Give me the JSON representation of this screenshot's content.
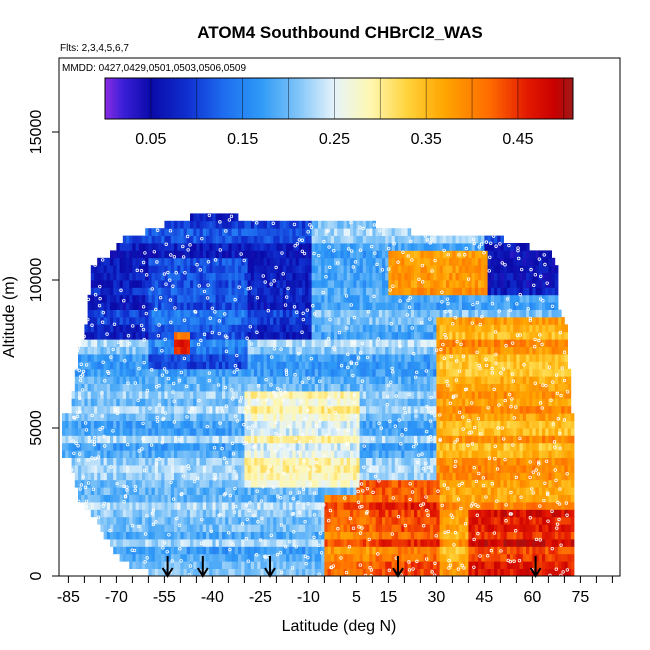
{
  "chart_data": {
    "type": "heatmap",
    "title": "ATOM4 Southbound CHBrCl2_WAS",
    "subtitle_flights": "Flts: 2,3,4,5,6,7",
    "subtitle_dates": "MMDD: 0427,0429,0501,0503,0506,0509",
    "xlabel": "Latitude (deg N)",
    "ylabel": "Altitude (m)",
    "xlim": [
      -87,
      88
    ],
    "ylim": [
      0,
      17500
    ],
    "x_ticks": [
      -85,
      -70,
      -55,
      -40,
      -25,
      -10,
      5,
      15,
      30,
      45,
      60,
      75
    ],
    "x_tick_labels": [
      "-85",
      "-70",
      "-55",
      "-40",
      "-25",
      "-10",
      "5",
      "15",
      "30",
      "45",
      "60",
      "75"
    ],
    "x_minor_ticks": [
      -80,
      -75,
      -65,
      -60,
      -50,
      -45,
      -35,
      -30,
      -20,
      -15,
      -5,
      0,
      10,
      20,
      25,
      35,
      40,
      50,
      55,
      65,
      70,
      80,
      85
    ],
    "y_ticks": [
      0,
      5000,
      10000,
      15000
    ],
    "y_tick_labels": [
      "0",
      "5000",
      "10000",
      "15000"
    ],
    "colorbar": {
      "min": 0.0,
      "max": 0.51,
      "tick_values": [
        0.05,
        0.15,
        0.25,
        0.35,
        0.45
      ],
      "tick_labels": [
        "0.05",
        "0.15",
        "0.25",
        "0.35",
        "0.45"
      ],
      "stops": [
        {
          "v": 0.0,
          "c": "#8a2be2"
        },
        {
          "v": 0.02,
          "c": "#3a1fd8"
        },
        {
          "v": 0.05,
          "c": "#0a0aa8"
        },
        {
          "v": 0.09,
          "c": "#1030d0"
        },
        {
          "v": 0.13,
          "c": "#1e6ef0"
        },
        {
          "v": 0.17,
          "c": "#2f9af7"
        },
        {
          "v": 0.21,
          "c": "#80c4f8"
        },
        {
          "v": 0.25,
          "c": "#e6f4fb"
        },
        {
          "v": 0.29,
          "c": "#fff7b0"
        },
        {
          "v": 0.33,
          "c": "#ffd23a"
        },
        {
          "v": 0.37,
          "c": "#ffa500"
        },
        {
          "v": 0.42,
          "c": "#ff6a00"
        },
        {
          "v": 0.46,
          "c": "#e41a00"
        },
        {
          "v": 0.49,
          "c": "#c80000"
        },
        {
          "v": 0.51,
          "c": "#a01818"
        }
      ]
    },
    "flight_arrows_lat": [
      -54,
      -43,
      -22,
      18,
      61
    ],
    "altitude_bin_m": 250,
    "profile_upper_m": [
      [
        -85,
        5700
      ],
      [
        -82,
        7800
      ],
      [
        -80,
        8500
      ],
      [
        -78,
        10500
      ],
      [
        -76,
        10800
      ],
      [
        -72,
        11000
      ],
      [
        -68,
        11500
      ],
      [
        -60,
        11800
      ],
      [
        -50,
        12200
      ],
      [
        -40,
        12400
      ],
      [
        -30,
        12200
      ],
      [
        -20,
        12000
      ],
      [
        -10,
        12000
      ],
      [
        0,
        12000
      ],
      [
        10,
        12000
      ],
      [
        20,
        11800
      ],
      [
        30,
        11500
      ],
      [
        40,
        11500
      ],
      [
        50,
        11500
      ],
      [
        60,
        11200
      ],
      [
        65,
        11200
      ],
      [
        67,
        10700
      ],
      [
        68,
        9000
      ],
      [
        70,
        8500
      ],
      [
        72,
        5500
      ],
      [
        73,
        4800
      ]
    ],
    "profile_lower_m": [
      [
        -85,
        3800
      ],
      [
        -82,
        2500
      ],
      [
        -78,
        2000
      ],
      [
        -74,
        1200
      ],
      [
        -70,
        600
      ],
      [
        -65,
        100
      ],
      [
        -60,
        0
      ],
      [
        72,
        0
      ]
    ],
    "field_regimes": [
      {
        "lat_range": [
          -87,
          72
        ],
        "alt_range": [
          0,
          12500
        ],
        "value": 0.2
      },
      {
        "lat_range": [
          -87,
          -10
        ],
        "alt_range": [
          8000,
          12500
        ],
        "value": 0.09
      },
      {
        "lat_range": [
          -60,
          -30
        ],
        "alt_range": [
          7000,
          10500
        ],
        "value": 0.13
      },
      {
        "lat_range": [
          45,
          72
        ],
        "alt_range": [
          9500,
          12500
        ],
        "value": 0.08
      },
      {
        "lat_range": [
          30,
          72
        ],
        "alt_range": [
          0,
          8500
        ],
        "value": 0.37
      },
      {
        "lat_range": [
          5,
          30
        ],
        "alt_range": [
          0,
          3000
        ],
        "value": 0.43
      },
      {
        "lat_range": [
          40,
          72
        ],
        "alt_range": [
          0,
          2000
        ],
        "value": 0.46
      },
      {
        "lat_range": [
          -5,
          10
        ],
        "alt_range": [
          0,
          2500
        ],
        "value": 0.41
      },
      {
        "lat_range": [
          15,
          45
        ],
        "alt_range": [
          9500,
          10800
        ],
        "value": 0.4
      },
      {
        "lat_range": [
          -52,
          -48
        ],
        "alt_range": [
          7500,
          8200
        ],
        "value": 0.44
      },
      {
        "lat_range": [
          -30,
          5
        ],
        "alt_range": [
          3000,
          6000
        ],
        "value": 0.27
      }
    ]
  }
}
